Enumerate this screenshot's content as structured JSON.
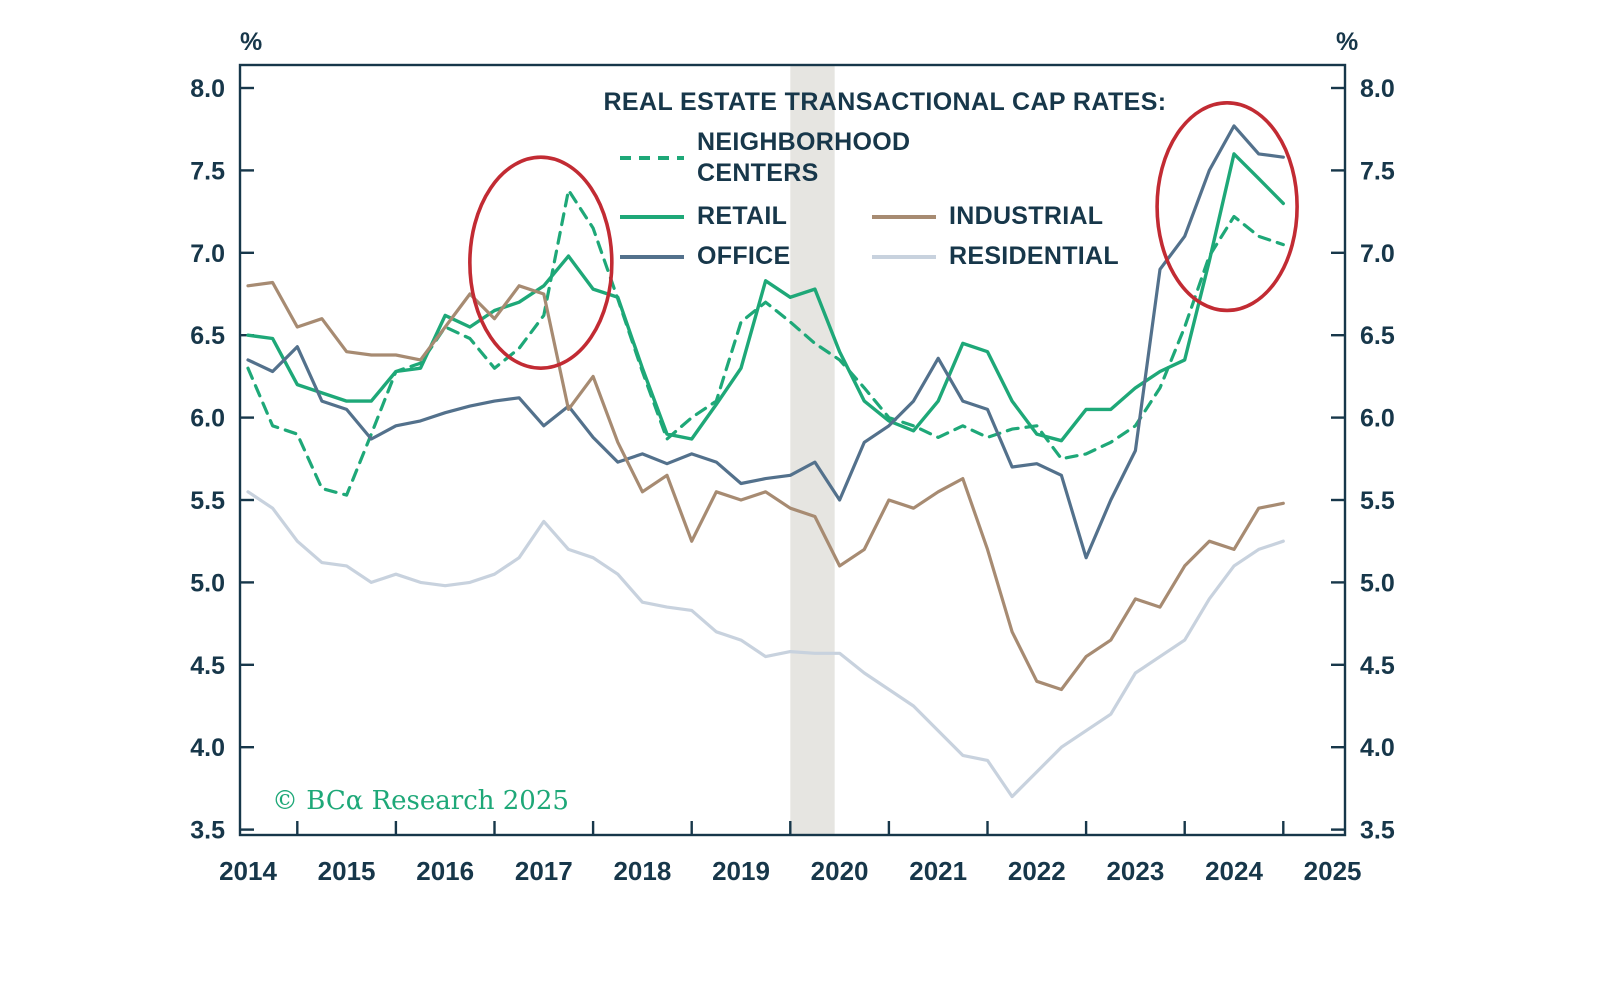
{
  "chart_data": {
    "type": "line",
    "title": "REAL ESTATE TRANSACTIONAL CAP RATES:",
    "unit": "%",
    "copyright": "© BCα Research 2025",
    "xlim": [
      2013.92,
      2025.13
    ],
    "ylim": [
      3.5,
      8.15
    ],
    "x_ticks": [
      2014,
      2015,
      2016,
      2017,
      2018,
      2019,
      2020,
      2021,
      2022,
      2023,
      2024,
      2025
    ],
    "y_ticks": [
      3.5,
      4.0,
      4.5,
      5.0,
      5.5,
      6.0,
      6.5,
      7.0,
      7.5,
      8.0
    ],
    "grid": false,
    "legend_position": "top-center",
    "frame_color": "#17374a",
    "x_start": 2014.0,
    "x_step": 0.25,
    "recession_band": {
      "x0": 2019.5,
      "x1": 2019.95,
      "color": "#e6e5e1"
    },
    "series": [
      {
        "name": "NEIGHBORHOOD CENTERS",
        "color": "#1ea878",
        "dash": "11 8",
        "width": 3.2,
        "values": [
          6.3,
          5.95,
          5.9,
          5.57,
          5.53,
          5.9,
          6.28,
          6.33,
          6.55,
          6.48,
          6.3,
          6.42,
          6.62,
          7.38,
          7.15,
          6.72,
          6.28,
          5.87,
          6.0,
          6.1,
          6.58,
          6.7,
          6.58,
          6.45,
          6.35,
          6.18,
          6.0,
          5.95,
          5.88,
          5.95,
          5.88,
          5.93,
          5.95,
          5.75,
          5.78,
          5.85,
          5.95,
          6.18,
          6.55,
          6.98,
          7.22,
          7.1,
          7.05
        ]
      },
      {
        "name": "RETAIL",
        "color": "#1ea878",
        "dash": null,
        "width": 3.4,
        "values": [
          6.5,
          6.48,
          6.2,
          6.15,
          6.1,
          6.1,
          6.28,
          6.3,
          6.62,
          6.55,
          6.65,
          6.7,
          6.8,
          6.98,
          6.78,
          6.73,
          6.3,
          5.9,
          5.87,
          6.08,
          6.3,
          6.83,
          6.73,
          6.78,
          6.4,
          6.1,
          5.98,
          5.92,
          6.1,
          6.45,
          6.4,
          6.1,
          5.9,
          5.86,
          6.05,
          6.05,
          6.18,
          6.28,
          6.35,
          6.95,
          7.6,
          7.45,
          7.3
        ]
      },
      {
        "name": "OFFICE",
        "color": "#53718c",
        "dash": null,
        "width": 3.2,
        "values": [
          6.35,
          6.28,
          6.43,
          6.1,
          6.05,
          5.87,
          5.95,
          5.98,
          6.03,
          6.07,
          6.1,
          6.12,
          5.95,
          6.07,
          5.88,
          5.73,
          5.78,
          5.72,
          5.78,
          5.73,
          5.6,
          5.63,
          5.65,
          5.73,
          5.5,
          5.85,
          5.95,
          6.1,
          6.36,
          6.1,
          6.05,
          5.7,
          5.72,
          5.65,
          5.15,
          5.5,
          5.8,
          6.9,
          7.1,
          7.5,
          7.77,
          7.6,
          7.58
        ]
      },
      {
        "name": "INDUSTRIAL",
        "color": "#a78b72",
        "dash": null,
        "width": 3.2,
        "values": [
          6.8,
          6.82,
          6.55,
          6.6,
          6.4,
          6.38,
          6.38,
          6.35,
          6.55,
          6.75,
          6.6,
          6.8,
          6.75,
          6.05,
          6.25,
          5.85,
          5.55,
          5.65,
          5.25,
          5.55,
          5.5,
          5.55,
          5.45,
          5.4,
          5.1,
          5.2,
          5.5,
          5.45,
          5.55,
          5.63,
          5.2,
          4.7,
          4.4,
          4.35,
          4.55,
          4.65,
          4.9,
          4.85,
          5.1,
          5.25,
          5.2,
          5.45,
          5.48
        ]
      },
      {
        "name": "RESIDENTIAL",
        "color": "#c8d2de",
        "dash": null,
        "width": 3.2,
        "values": [
          5.55,
          5.45,
          5.25,
          5.12,
          5.1,
          5.0,
          5.05,
          5.0,
          4.98,
          5.0,
          5.05,
          5.15,
          5.37,
          5.2,
          5.15,
          5.05,
          4.88,
          4.85,
          4.83,
          4.7,
          4.65,
          4.55,
          4.58,
          4.57,
          4.57,
          4.45,
          4.35,
          4.25,
          4.1,
          3.95,
          3.92,
          3.7,
          3.85,
          4.0,
          4.1,
          4.2,
          4.45,
          4.55,
          4.65,
          4.9,
          5.1,
          5.2,
          5.25
        ]
      }
    ],
    "annotations": [
      {
        "type": "ellipse",
        "cx": 2016.97,
        "cy": 6.94,
        "rx": 0.72,
        "ry": 0.64,
        "color": "#c22b33"
      },
      {
        "type": "ellipse",
        "cx": 2023.93,
        "cy": 7.28,
        "rx": 0.71,
        "ry": 0.63,
        "color": "#c22b33"
      }
    ]
  }
}
